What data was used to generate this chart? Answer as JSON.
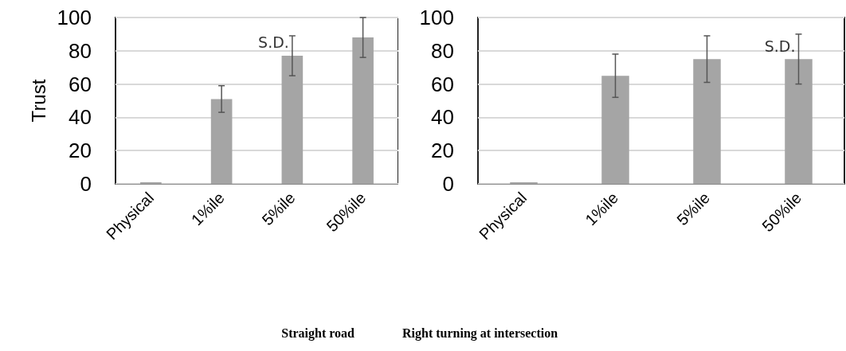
{
  "chart_data": [
    {
      "type": "bar",
      "title": "Straight road",
      "ylabel": "Trust",
      "categories": [
        "Physical",
        "1%ile",
        "5%ile",
        "50%ile"
      ],
      "values": [
        1,
        51,
        77,
        88
      ],
      "errors": [
        null,
        8,
        12,
        12
      ],
      "color": "#a5a5a5",
      "ylim": [
        0,
        100
      ],
      "yticks": [
        0,
        20,
        40,
        60,
        80,
        100
      ],
      "grid": "y",
      "annotations": [
        {
          "text": "S.D.",
          "x": "5%ile",
          "y": 85
        }
      ]
    },
    {
      "type": "bar",
      "title": "Right turning at intersection",
      "categories": [
        "Physical",
        "1%ile",
        "5%ile",
        "50%ile"
      ],
      "values": [
        1,
        65,
        75,
        75
      ],
      "errors": [
        null,
        13,
        14,
        15
      ],
      "color": "#a5a5a5",
      "ylim": [
        0,
        100
      ],
      "yticks": [
        0,
        20,
        40,
        60,
        80,
        100
      ],
      "grid": "y",
      "annotations": [
        {
          "text": "S.D.",
          "x": "50%ile",
          "y": 83
        }
      ]
    }
  ]
}
